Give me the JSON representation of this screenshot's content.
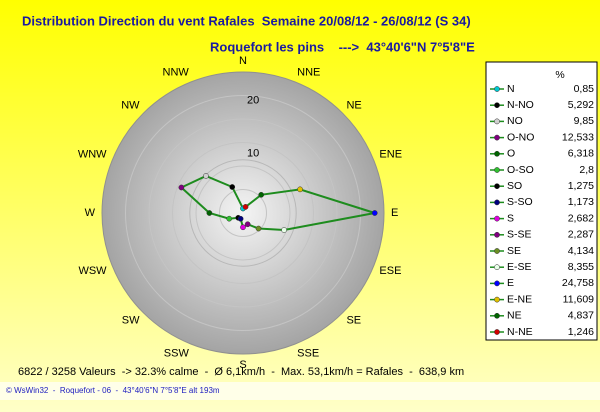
{
  "chart_data": {
    "type": "radar",
    "title": "Distribution Direction du vent Rafales  Semaine 20/08/12 - 26/08/12 (S 34)",
    "subtitle": "Roquefort les pins    --->  43°40'6\"N 7°5'8\"E",
    "categories": [
      "N",
      "NNE",
      "NE",
      "ENE",
      "E",
      "ESE",
      "SE",
      "SSE",
      "S",
      "SSW",
      "SW",
      "WSW",
      "W",
      "WNW",
      "NW",
      "NNW"
    ],
    "legend_header": "%",
    "legend_names": [
      "N",
      "N-NO",
      "NO",
      "O-NO",
      "O",
      "O-SO",
      "SO",
      "S-SO",
      "S",
      "S-SE",
      "SE",
      "E-SE",
      "E",
      "E-NE",
      "NE",
      "N-NE"
    ],
    "values": [
      0.85,
      5.292,
      9.85,
      12.533,
      6.318,
      2.8,
      1.275,
      1.173,
      2.682,
      2.287,
      4.134,
      8.355,
      24.758,
      11.609,
      4.837,
      1.246
    ],
    "value_labels": [
      "0,85",
      "5,292",
      "9,85",
      "12,533",
      "6,318",
      "2,8",
      "1,275",
      "1,173",
      "2,682",
      "2,287",
      "4,134",
      "8,355",
      "24,758",
      "11,609",
      "4,837",
      "1,246"
    ],
    "colors": [
      "#00c8d0",
      "#000000",
      "#d0d0d0",
      "#800080",
      "#006400",
      "#30c030",
      "#000000",
      "#000080",
      "#e000e0",
      "#800080",
      "#6b8e23",
      "#e8ffe8",
      "#0000ff",
      "#e0c000",
      "#006400",
      "#d00000"
    ],
    "line_color": "#1e8c1e",
    "rlim": [
      0,
      26.5
    ],
    "rticks": [
      10,
      20
    ],
    "footer": "6822 / 3258 Valeurs  -> 32.3% calme  -  Ø 6,1km/h  -  Max. 53,1km/h = Rafales  -  638,9 km",
    "credit": "© WsWin32  -  Roquefort - 06  -  43°40'6\"N 7°5'8\"E alt 193m"
  }
}
